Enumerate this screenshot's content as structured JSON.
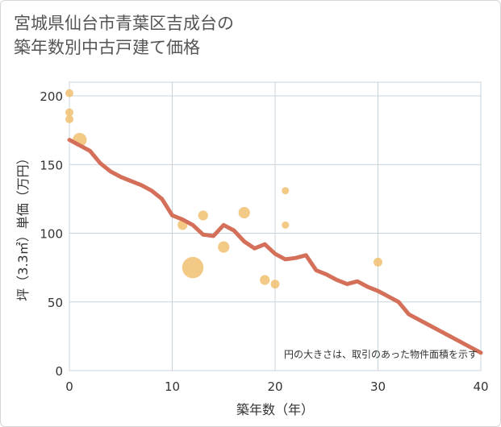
{
  "title": "宮城県仙台市青葉区吉成台の\n築年数別中古戸建て価格",
  "chart_data": {
    "type": "scatter",
    "title": "宮城県仙台市青葉区吉成台の築年数別中古戸建て価格",
    "xlabel": "築年数（年）",
    "ylabel": "坪（3.3㎡）単価（万円）",
    "xlim": [
      0,
      40
    ],
    "ylim": [
      0,
      210
    ],
    "x_ticks": [
      0,
      10,
      20,
      30,
      40
    ],
    "y_ticks": [
      0,
      50,
      100,
      150,
      200
    ],
    "grid": true,
    "note": "円の大きさは、取引のあった物件面積を示す",
    "colors": {
      "bubble": "#f0c070",
      "line": "#d4705a",
      "grid": "#c8d4dc"
    },
    "scatter_points": [
      {
        "x": 0,
        "y": 202,
        "size": 1
      },
      {
        "x": 0,
        "y": 188,
        "size": 1
      },
      {
        "x": 0,
        "y": 183,
        "size": 1
      },
      {
        "x": 1,
        "y": 168,
        "size": 3
      },
      {
        "x": 11,
        "y": 106,
        "size": 1.5
      },
      {
        "x": 12,
        "y": 75,
        "size": 7
      },
      {
        "x": 13,
        "y": 113,
        "size": 1.5
      },
      {
        "x": 15,
        "y": 90,
        "size": 2
      },
      {
        "x": 17,
        "y": 115,
        "size": 2
      },
      {
        "x": 19,
        "y": 66,
        "size": 1.5
      },
      {
        "x": 20,
        "y": 63,
        "size": 1.2
      },
      {
        "x": 21,
        "y": 131,
        "size": 0.8
      },
      {
        "x": 21,
        "y": 106,
        "size": 0.8
      },
      {
        "x": 30,
        "y": 79,
        "size": 1.2
      }
    ],
    "trend_line": {
      "x": [
        0,
        1,
        2,
        3,
        4,
        5,
        6,
        7,
        8,
        9,
        10,
        11,
        12,
        13,
        14,
        15,
        16,
        17,
        18,
        19,
        20,
        21,
        22,
        23,
        24,
        25,
        26,
        27,
        28,
        29,
        30,
        31,
        32,
        33,
        34,
        35,
        36,
        37,
        38,
        39,
        40
      ],
      "y": [
        168,
        164,
        160,
        151,
        145,
        141,
        138,
        135,
        131,
        125,
        113,
        110,
        106,
        99,
        98,
        106,
        102,
        94,
        89,
        92,
        85,
        81,
        82,
        84,
        73,
        70,
        66,
        63,
        65,
        61,
        58,
        54,
        50,
        41,
        37,
        33,
        29,
        25,
        21,
        17,
        13
      ]
    }
  }
}
